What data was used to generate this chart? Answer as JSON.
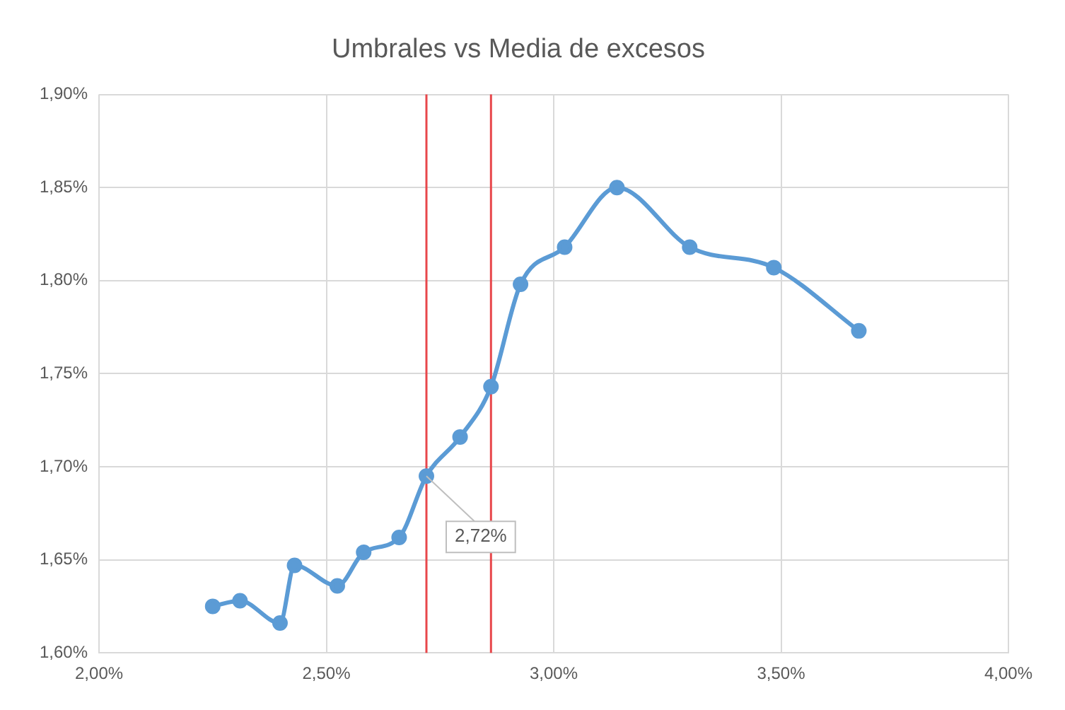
{
  "chart_data": {
    "type": "line",
    "title": "Umbrales vs Media de excesos",
    "x": [
      2.25,
      2.31,
      2.398,
      2.43,
      2.524,
      2.582,
      2.66,
      2.72,
      2.794,
      2.862,
      2.927,
      3.024,
      3.139,
      3.299,
      3.484,
      3.671
    ],
    "series": [
      {
        "color": "#5b9bd5",
        "values": [
          1.625,
          1.628,
          1.616,
          1.647,
          1.636,
          1.654,
          1.662,
          1.695,
          1.716,
          1.743,
          1.798,
          1.818,
          1.85,
          1.818,
          1.807,
          1.773
        ]
      }
    ],
    "xlim": [
      2,
      4
    ],
    "xticks": [
      {
        "value": 2,
        "label": "2,00%"
      },
      {
        "value": 2.5,
        "label": "2,50%"
      },
      {
        "value": 3,
        "label": "3,00%"
      },
      {
        "value": 3.5,
        "label": "3,50%"
      },
      {
        "value": 4,
        "label": "4,00%"
      }
    ],
    "ylim": [
      1.6,
      1.9
    ],
    "yticks": [
      {
        "value": 1.6,
        "label": "1,60%"
      },
      {
        "value": 1.65,
        "label": "1,65%"
      },
      {
        "value": 1.7,
        "label": "1,70%"
      },
      {
        "value": 1.75,
        "label": "1,75%"
      },
      {
        "value": 1.8,
        "label": "1,80%"
      },
      {
        "value": 1.85,
        "label": "1,85%"
      },
      {
        "value": 1.9,
        "label": "1,90%"
      }
    ],
    "ref_lines": [
      {
        "axis": "x",
        "value": 2.72,
        "color": "#e8474b"
      },
      {
        "axis": "x",
        "value": 2.862,
        "color": "#e8474b"
      }
    ],
    "annotations": [
      {
        "text": "2,72%",
        "x": 2.72,
        "y": 1.695
      }
    ],
    "grid": true,
    "legend": false,
    "marker": "circle",
    "line_style": "solid"
  }
}
